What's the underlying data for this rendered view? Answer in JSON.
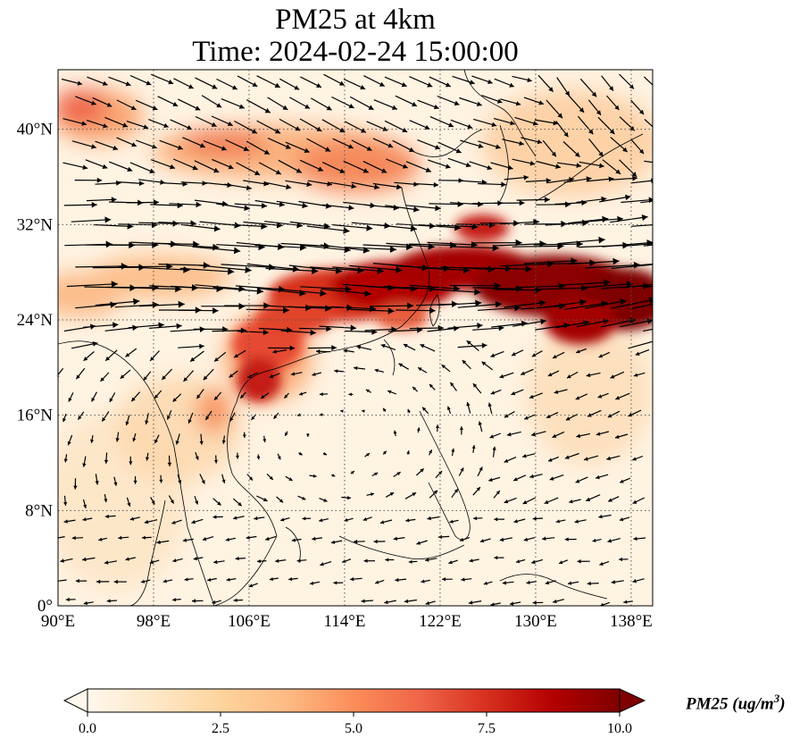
{
  "title": {
    "line1": "PM25 at 4km",
    "line2": "Time: 2024-02-24 15:00:00"
  },
  "map": {
    "projection": "PlateCarree",
    "lon_range": [
      90,
      139.8
    ],
    "lat_range": [
      0,
      45
    ],
    "gridlines": "dotted",
    "x_ticks": [
      {
        "value": 90,
        "label": "90°E"
      },
      {
        "value": 98,
        "label": "98°E"
      },
      {
        "value": 106,
        "label": "106°E"
      },
      {
        "value": 114,
        "label": "114°E"
      },
      {
        "value": 122,
        "label": "122°E"
      },
      {
        "value": 130,
        "label": "130°E"
      },
      {
        "value": 138,
        "label": "138°E"
      }
    ],
    "y_ticks": [
      {
        "value": 0,
        "label": "0°"
      },
      {
        "value": 8,
        "label": "8°N"
      },
      {
        "value": 16,
        "label": "16°N"
      },
      {
        "value": 24,
        "label": "24°N"
      },
      {
        "value": 32,
        "label": "32°N"
      },
      {
        "value": 40,
        "label": "40°N"
      }
    ]
  },
  "colorbar": {
    "label": "PM25 (ug/m",
    "label_sup": "3",
    "label_close": ")",
    "min": 0,
    "max": 10,
    "extend": "both",
    "colormap": "OrRd",
    "colors": [
      "#fff7ec",
      "#fee8c8",
      "#fdd49e",
      "#fdbb84",
      "#fc8d59",
      "#ef6548",
      "#d7301f",
      "#b30000",
      "#7f0000"
    ],
    "ticks": [
      {
        "value": 0,
        "label": "0.0"
      },
      {
        "value": 2.5,
        "label": "2.5"
      },
      {
        "value": 5,
        "label": "5.0"
      },
      {
        "value": 7.5,
        "label": "7.5"
      },
      {
        "value": 10,
        "label": "10.0"
      }
    ]
  }
}
